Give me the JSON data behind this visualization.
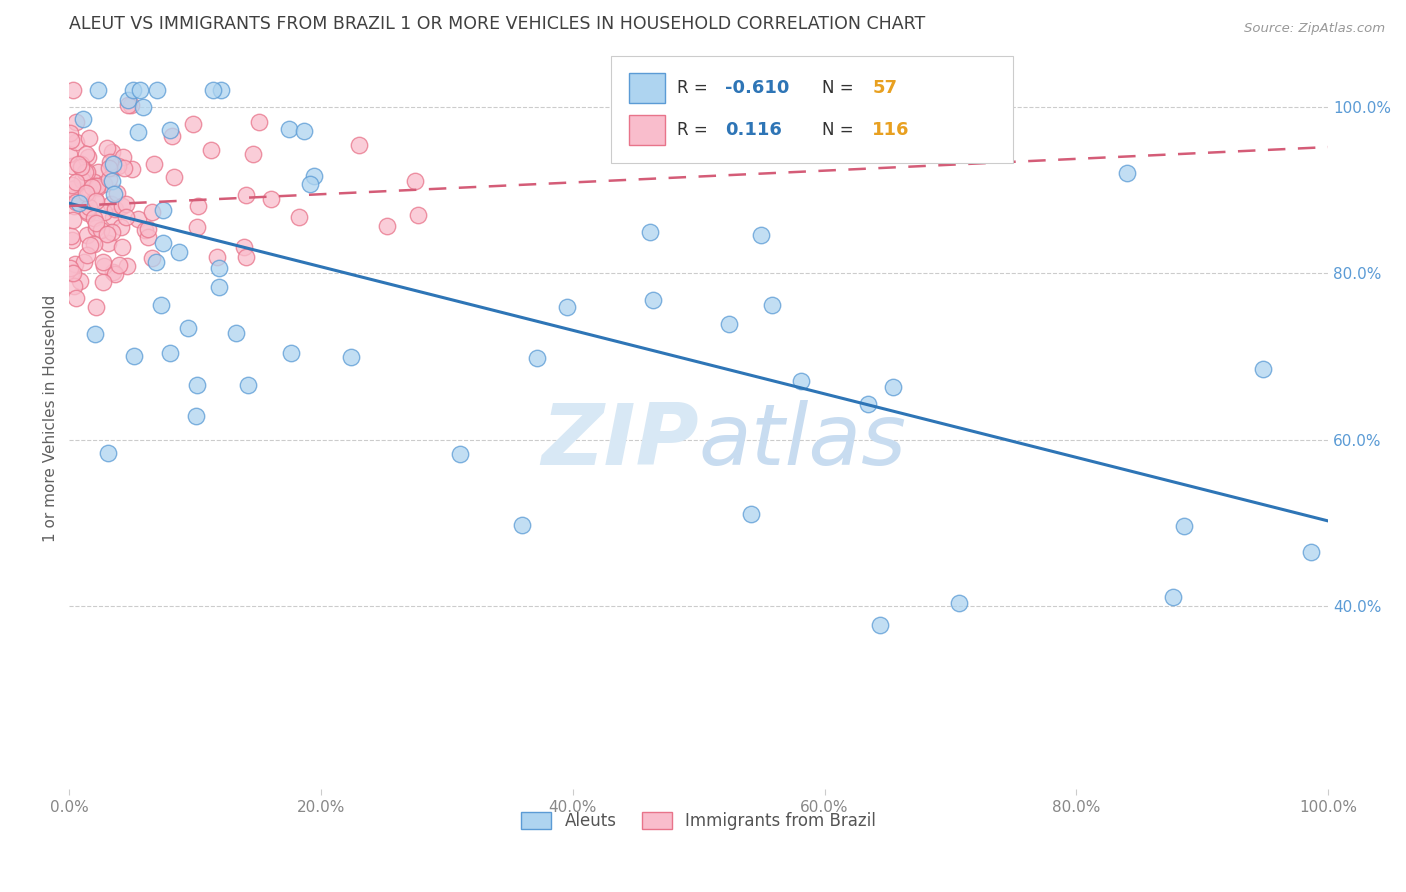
{
  "title": "ALEUT VS IMMIGRANTS FROM BRAZIL 1 OR MORE VEHICLES IN HOUSEHOLD CORRELATION CHART",
  "source": "Source: ZipAtlas.com",
  "ylabel": "1 or more Vehicles in Household",
  "aleut_R": "-0.610",
  "aleut_N": "57",
  "brazil_R": "0.116",
  "brazil_N": "116",
  "aleut_color": "#AED4F0",
  "brazil_color": "#F9BDCC",
  "aleut_edge_color": "#5B9BD5",
  "brazil_edge_color": "#E8748A",
  "aleut_line_color": "#2E75B6",
  "brazil_line_color": "#D45C77",
  "watermark_color": "#D8E8F5",
  "N_color": "#E8A020",
  "R_color": "#2E75B6",
  "legend_label_color": "#333333",
  "right_tick_color": "#5B9BD5",
  "xtick_color": "#888888",
  "title_color": "#404040",
  "ylabel_color": "#606060"
}
